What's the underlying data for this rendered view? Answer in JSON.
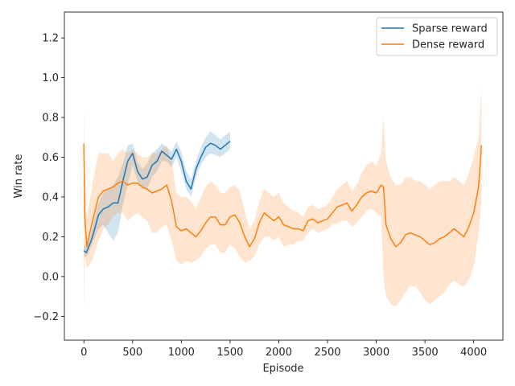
{
  "chart_data": {
    "type": "line",
    "title": "",
    "xlabel": "Episode",
    "ylabel": "Win rate",
    "xlim": [
      -200,
      4300
    ],
    "ylim": [
      -0.32,
      1.33
    ],
    "xticks": [
      0,
      500,
      1000,
      1500,
      2000,
      2500,
      3000,
      3500,
      4000
    ],
    "yticks": [
      -0.2,
      0.0,
      0.2,
      0.4,
      0.6,
      0.8,
      1.0,
      1.2
    ],
    "grid": false,
    "legend_position": "top-right",
    "series": [
      {
        "name": "Sparse reward",
        "color": "#1f77b4",
        "x": [
          0,
          25,
          50,
          75,
          100,
          150,
          200,
          250,
          300,
          350,
          400,
          450,
          500,
          550,
          600,
          650,
          700,
          750,
          800,
          850,
          900,
          950,
          1000,
          1050,
          1100,
          1150,
          1200,
          1250,
          1300,
          1350,
          1400,
          1450,
          1500
        ],
        "y": [
          0.13,
          0.12,
          0.15,
          0.18,
          0.22,
          0.31,
          0.34,
          0.35,
          0.37,
          0.37,
          0.48,
          0.58,
          0.62,
          0.53,
          0.49,
          0.5,
          0.56,
          0.58,
          0.63,
          0.61,
          0.59,
          0.64,
          0.58,
          0.48,
          0.44,
          0.54,
          0.6,
          0.65,
          0.67,
          0.66,
          0.64,
          0.66,
          0.68
        ],
        "lower": [
          0.1,
          0.1,
          0.12,
          0.15,
          0.18,
          0.24,
          0.26,
          0.22,
          0.18,
          0.22,
          0.36,
          0.46,
          0.56,
          0.48,
          0.44,
          0.44,
          0.5,
          0.53,
          0.58,
          0.58,
          0.55,
          0.6,
          0.53,
          0.44,
          0.4,
          0.5,
          0.56,
          0.6,
          0.62,
          0.61,
          0.6,
          0.62,
          0.64
        ],
        "upper": [
          0.16,
          0.15,
          0.19,
          0.22,
          0.27,
          0.37,
          0.42,
          0.44,
          0.46,
          0.5,
          0.57,
          0.66,
          0.67,
          0.58,
          0.54,
          0.57,
          0.62,
          0.64,
          0.67,
          0.65,
          0.63,
          0.68,
          0.63,
          0.53,
          0.49,
          0.58,
          0.65,
          0.7,
          0.73,
          0.71,
          0.69,
          0.71,
          0.73
        ]
      },
      {
        "name": "Dense reward",
        "color": "#ff7f0e",
        "x": [
          0,
          10,
          30,
          60,
          100,
          150,
          200,
          250,
          300,
          350,
          400,
          450,
          500,
          550,
          600,
          650,
          700,
          750,
          800,
          850,
          900,
          950,
          1000,
          1050,
          1100,
          1150,
          1200,
          1250,
          1300,
          1350,
          1400,
          1450,
          1500,
          1550,
          1600,
          1650,
          1700,
          1750,
          1800,
          1850,
          1900,
          1950,
          2000,
          2050,
          2100,
          2150,
          2200,
          2250,
          2300,
          2350,
          2400,
          2450,
          2500,
          2550,
          2600,
          2650,
          2700,
          2750,
          2800,
          2850,
          2900,
          2950,
          3000,
          3050,
          3075,
          3100,
          3150,
          3200,
          3250,
          3300,
          3350,
          3400,
          3450,
          3500,
          3550,
          3600,
          3650,
          3700,
          3750,
          3800,
          3850,
          3900,
          3950,
          4000,
          4050,
          4080
        ],
        "y": [
          0.67,
          0.3,
          0.15,
          0.22,
          0.3,
          0.4,
          0.43,
          0.44,
          0.45,
          0.47,
          0.48,
          0.46,
          0.47,
          0.47,
          0.45,
          0.44,
          0.42,
          0.43,
          0.44,
          0.46,
          0.38,
          0.25,
          0.23,
          0.24,
          0.22,
          0.2,
          0.23,
          0.27,
          0.3,
          0.3,
          0.26,
          0.26,
          0.3,
          0.31,
          0.27,
          0.2,
          0.15,
          0.19,
          0.27,
          0.32,
          0.3,
          0.28,
          0.3,
          0.26,
          0.25,
          0.24,
          0.24,
          0.23,
          0.28,
          0.29,
          0.27,
          0.28,
          0.29,
          0.32,
          0.35,
          0.36,
          0.37,
          0.33,
          0.36,
          0.4,
          0.42,
          0.43,
          0.42,
          0.46,
          0.45,
          0.26,
          0.19,
          0.15,
          0.17,
          0.21,
          0.22,
          0.21,
          0.2,
          0.18,
          0.16,
          0.17,
          0.19,
          0.2,
          0.22,
          0.24,
          0.22,
          0.2,
          0.25,
          0.32,
          0.45,
          0.66
        ],
        "lower": [
          -0.18,
          0.1,
          0.04,
          0.06,
          0.1,
          0.18,
          0.24,
          0.26,
          0.3,
          0.32,
          0.32,
          0.28,
          0.3,
          0.32,
          0.3,
          0.28,
          0.22,
          0.22,
          0.25,
          0.26,
          0.18,
          0.08,
          0.06,
          0.08,
          0.07,
          0.08,
          0.1,
          0.14,
          0.16,
          0.16,
          0.12,
          0.12,
          0.16,
          0.14,
          0.1,
          0.07,
          0.08,
          0.1,
          0.16,
          0.2,
          0.2,
          0.18,
          0.2,
          0.15,
          0.16,
          0.16,
          0.18,
          0.18,
          0.22,
          0.24,
          0.22,
          0.23,
          0.24,
          0.26,
          0.27,
          0.28,
          0.28,
          0.25,
          0.27,
          0.3,
          0.33,
          0.34,
          0.32,
          0.3,
          0.0,
          -0.1,
          -0.14,
          -0.15,
          -0.12,
          -0.08,
          -0.05,
          -0.05,
          -0.08,
          -0.12,
          -0.14,
          -0.12,
          -0.1,
          -0.08,
          -0.04,
          -0.02,
          -0.04,
          -0.05,
          -0.02,
          0.05,
          0.22,
          0.38
        ],
        "upper": [
          0.88,
          0.5,
          0.3,
          0.38,
          0.5,
          0.62,
          0.62,
          0.62,
          0.58,
          0.62,
          0.64,
          0.62,
          0.64,
          0.62,
          0.6,
          0.6,
          0.62,
          0.62,
          0.64,
          0.66,
          0.58,
          0.42,
          0.4,
          0.4,
          0.38,
          0.34,
          0.4,
          0.45,
          0.48,
          0.46,
          0.42,
          0.42,
          0.45,
          0.46,
          0.43,
          0.33,
          0.24,
          0.28,
          0.38,
          0.44,
          0.42,
          0.4,
          0.42,
          0.37,
          0.35,
          0.33,
          0.32,
          0.3,
          0.35,
          0.36,
          0.34,
          0.35,
          0.36,
          0.4,
          0.44,
          0.46,
          0.48,
          0.43,
          0.46,
          0.52,
          0.56,
          0.58,
          0.56,
          0.62,
          0.8,
          0.58,
          0.5,
          0.46,
          0.46,
          0.5,
          0.5,
          0.48,
          0.48,
          0.46,
          0.44,
          0.46,
          0.48,
          0.48,
          0.48,
          0.5,
          0.48,
          0.46,
          0.52,
          0.6,
          0.7,
          0.96
        ]
      }
    ]
  }
}
